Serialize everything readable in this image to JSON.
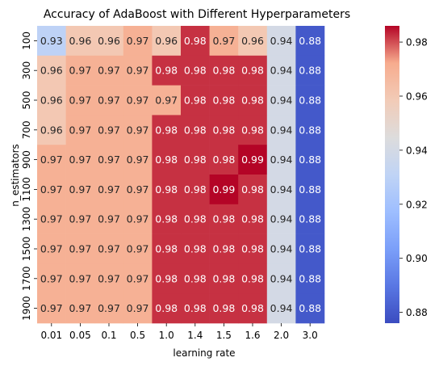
{
  "chart_data": {
    "type": "heatmap",
    "title": "Accuracy of AdaBoost with Different Hyperparameters",
    "xlabel": "learning rate",
    "ylabel": "n_estimators",
    "x_categories": [
      "0.01",
      "0.05",
      "0.1",
      "0.5",
      "1.0",
      "1.4",
      "1.5",
      "1.6",
      "2.0",
      "3.0"
    ],
    "y_categories": [
      "100",
      "300",
      "500",
      "700",
      "900",
      "1100",
      "1300",
      "1500",
      "1700",
      "1900"
    ],
    "values": [
      [
        0.93,
        0.96,
        0.96,
        0.97,
        0.96,
        0.98,
        0.97,
        0.96,
        0.94,
        0.88
      ],
      [
        0.96,
        0.97,
        0.97,
        0.97,
        0.98,
        0.98,
        0.98,
        0.98,
        0.94,
        0.88
      ],
      [
        0.96,
        0.97,
        0.97,
        0.97,
        0.97,
        0.98,
        0.98,
        0.98,
        0.94,
        0.88
      ],
      [
        0.96,
        0.97,
        0.97,
        0.97,
        0.98,
        0.98,
        0.98,
        0.98,
        0.94,
        0.88
      ],
      [
        0.97,
        0.97,
        0.97,
        0.97,
        0.98,
        0.98,
        0.98,
        0.99,
        0.94,
        0.88
      ],
      [
        0.97,
        0.97,
        0.97,
        0.97,
        0.98,
        0.98,
        0.99,
        0.98,
        0.94,
        0.88
      ],
      [
        0.97,
        0.97,
        0.97,
        0.97,
        0.98,
        0.98,
        0.98,
        0.98,
        0.94,
        0.88
      ],
      [
        0.97,
        0.97,
        0.97,
        0.97,
        0.98,
        0.98,
        0.98,
        0.98,
        0.94,
        0.88
      ],
      [
        0.97,
        0.97,
        0.97,
        0.97,
        0.98,
        0.98,
        0.98,
        0.98,
        0.94,
        0.88
      ],
      [
        0.97,
        0.97,
        0.97,
        0.97,
        0.98,
        0.98,
        0.98,
        0.98,
        0.94,
        0.88
      ]
    ],
    "value_precision": 2,
    "colormap": "coolwarm",
    "colorbar": {
      "range": [
        0.876,
        0.986
      ],
      "ticks": [
        0.88,
        0.9,
        0.92,
        0.94,
        0.96,
        0.98
      ],
      "tick_labels": [
        "0.88",
        "0.90",
        "0.92",
        "0.94",
        "0.96",
        "0.98"
      ]
    }
  }
}
